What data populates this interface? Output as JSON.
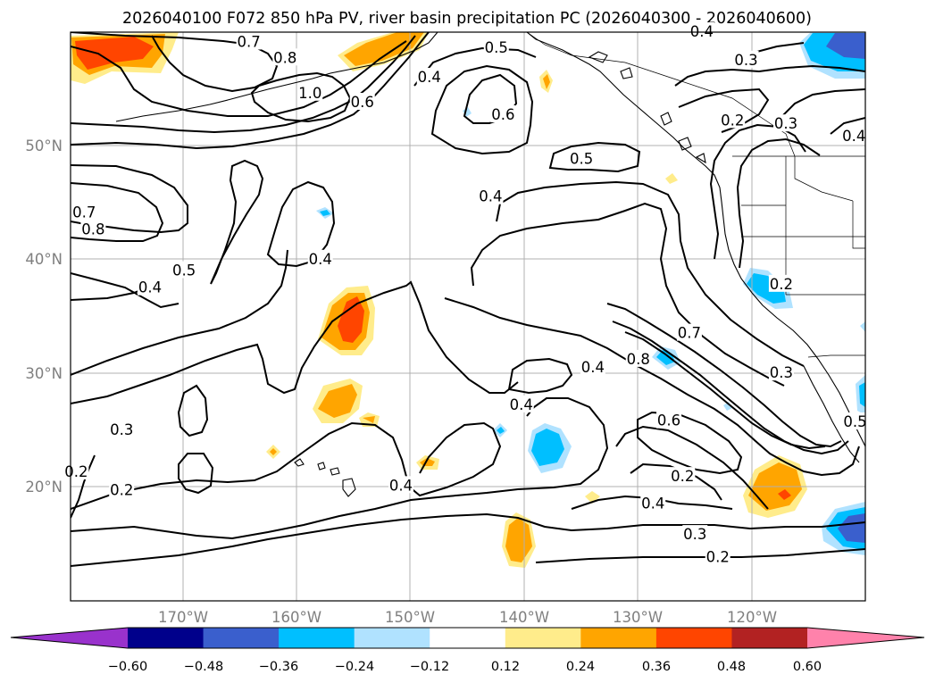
{
  "title": "2026040100 F072 850 hPa PV, river basin precipitation PC (2026040300 - 2026040600)",
  "map": {
    "lon_range": [
      -180,
      -110
    ],
    "lat_range": [
      10,
      60
    ],
    "gridlines": true,
    "lon_ticks": [
      {
        "lon": -170,
        "label": "170°W"
      },
      {
        "lon": -160,
        "label": "160°W"
      },
      {
        "lon": -150,
        "label": "150°W"
      },
      {
        "lon": -140,
        "label": "140°W"
      },
      {
        "lon": -130,
        "label": "130°W"
      },
      {
        "lon": -120,
        "label": "120°W"
      }
    ],
    "lat_ticks": [
      {
        "lat": 20,
        "label": "20°N"
      },
      {
        "lat": 30,
        "label": "30°N"
      },
      {
        "lat": 40,
        "label": "40°N"
      },
      {
        "lat": 50,
        "label": "50°N"
      }
    ]
  },
  "colorbar": {
    "levels": [
      "−0.60",
      "−0.48",
      "−0.36",
      "−0.24",
      "−0.12",
      "0.12",
      "0.24",
      "0.36",
      "0.48",
      "0.60"
    ],
    "colors": [
      "#9932cc",
      "#00008b",
      "#3a5fcd",
      "#00bfff",
      "#b0e2ff",
      "#ffffff",
      "#ffec8b",
      "#ffa500",
      "#ff4500",
      "#b22222",
      "#ff82ab"
    ],
    "extend": "both"
  },
  "contour_labels": [
    {
      "lon": -164.3,
      "lat": 59.1,
      "text": "0.7"
    },
    {
      "lon": -161.1,
      "lat": 57.7,
      "text": "0.8"
    },
    {
      "lon": -158.9,
      "lat": 54.6,
      "text": "1.0"
    },
    {
      "lon": -154.3,
      "lat": 53.8,
      "text": "0.6"
    },
    {
      "lon": -148.4,
      "lat": 56.0,
      "text": "0.4"
    },
    {
      "lon": -142.5,
      "lat": 58.6,
      "text": "0.5"
    },
    {
      "lon": -141.9,
      "lat": 52.7,
      "text": "0.6"
    },
    {
      "lon": -135.0,
      "lat": 48.8,
      "text": "0.5"
    },
    {
      "lon": -143.0,
      "lat": 45.5,
      "text": "0.4"
    },
    {
      "lon": -124.4,
      "lat": 60.0,
      "text": "0.4"
    },
    {
      "lon": -120.5,
      "lat": 57.5,
      "text": "0.3"
    },
    {
      "lon": -121.7,
      "lat": 52.2,
      "text": "0.2"
    },
    {
      "lon": -117.0,
      "lat": 51.9,
      "text": "0.3"
    },
    {
      "lon": -111.0,
      "lat": 50.8,
      "text": "0.4"
    },
    {
      "lon": -178.0,
      "lat": 42.6,
      "text": "0.8"
    },
    {
      "lon": -178.8,
      "lat": 44.1,
      "text": "0.7"
    },
    {
      "lon": -173.0,
      "lat": 37.5,
      "text": "0.4"
    },
    {
      "lon": -170.0,
      "lat": 39.0,
      "text": "0.5"
    },
    {
      "lon": -158.0,
      "lat": 40.0,
      "text": "0.4"
    },
    {
      "lon": -130.0,
      "lat": 31.2,
      "text": "0.8"
    },
    {
      "lon": -134.0,
      "lat": 30.5,
      "text": "0.4"
    },
    {
      "lon": -125.5,
      "lat": 33.5,
      "text": "0.7"
    },
    {
      "lon": -117.4,
      "lat": 37.8,
      "text": "0.2"
    },
    {
      "lon": -117.4,
      "lat": 30.0,
      "text": "0.3"
    },
    {
      "lon": -140.3,
      "lat": 27.2,
      "text": "0.4"
    },
    {
      "lon": -127.3,
      "lat": 25.8,
      "text": "0.6"
    },
    {
      "lon": -126.1,
      "lat": 20.9,
      "text": "0.2"
    },
    {
      "lon": -150.9,
      "lat": 20.1,
      "text": "0.4"
    },
    {
      "lon": -128.7,
      "lat": 18.5,
      "text": "0.4"
    },
    {
      "lon": -125.0,
      "lat": 15.8,
      "text": "0.3"
    },
    {
      "lon": -123.0,
      "lat": 13.8,
      "text": "0.2"
    },
    {
      "lon": -175.5,
      "lat": 25.0,
      "text": "0.3"
    },
    {
      "lon": -175.5,
      "lat": 19.7,
      "text": "0.2"
    },
    {
      "lon": -179.5,
      "lat": 21.3,
      "text": "0.2"
    },
    {
      "lon": -110.9,
      "lat": 25.7,
      "text": "0.5"
    }
  ]
}
